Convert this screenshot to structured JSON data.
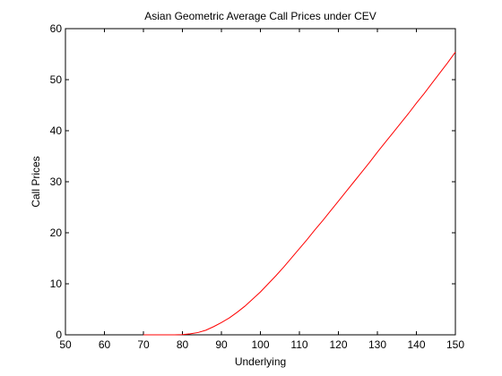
{
  "chart_data": {
    "type": "line",
    "title": "Asian Geometric Average Call Prices under CEV",
    "xlabel": "Underlying",
    "ylabel": "Call Prices",
    "xlim": [
      50,
      150
    ],
    "ylim": [
      0,
      60
    ],
    "xticks": [
      50,
      60,
      70,
      80,
      90,
      100,
      110,
      120,
      130,
      140,
      150
    ],
    "yticks": [
      0,
      10,
      20,
      30,
      40,
      50,
      60
    ],
    "grid": false,
    "legend": "none",
    "series": [
      {
        "color": "#ff0000",
        "x": [
          70,
          72,
          74,
          76,
          78,
          80,
          82,
          84,
          86,
          88,
          90,
          92,
          94,
          96,
          98,
          100,
          102,
          104,
          106,
          108,
          110,
          112,
          114,
          116,
          118,
          120,
          122,
          124,
          126,
          128,
          130,
          132,
          134,
          136,
          138,
          140,
          142,
          144,
          146,
          148,
          150
        ],
        "y": [
          0.0,
          0.0,
          0.0,
          0.0,
          0.0,
          0.05,
          0.2,
          0.45,
          0.9,
          1.6,
          2.4,
          3.3,
          4.4,
          5.6,
          7.0,
          8.4,
          10.0,
          11.6,
          13.3,
          15.1,
          16.9,
          18.7,
          20.6,
          22.4,
          24.3,
          26.2,
          28.1,
          30.0,
          31.9,
          33.8,
          35.8,
          37.7,
          39.6,
          41.5,
          43.4,
          45.4,
          47.3,
          49.3,
          51.3,
          53.3,
          55.4
        ]
      }
    ]
  }
}
